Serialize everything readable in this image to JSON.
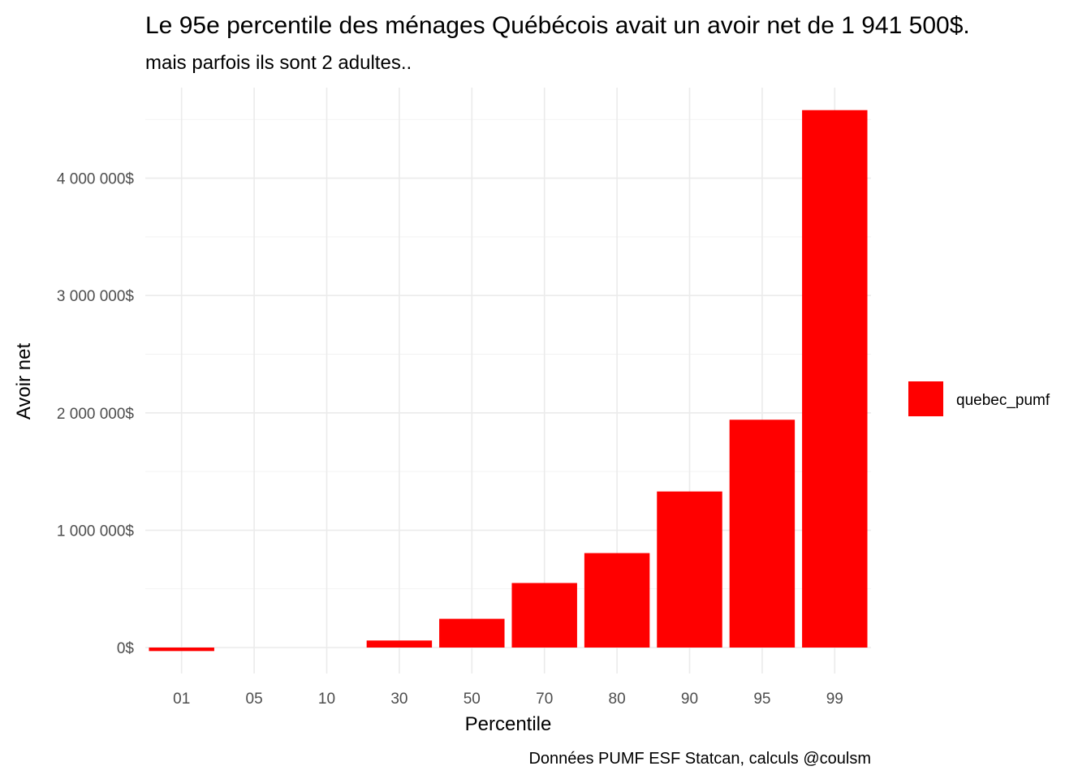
{
  "chart_data": {
    "type": "bar",
    "title": "Le 95e percentile des ménages Québécois avait un avoir net de 1 941 500$.",
    "subtitle": "mais parfois ils sont 2 adultes..",
    "xlabel": "Percentile",
    "ylabel": "Avoir net",
    "caption": "Données PUMF ESF Statcan, calculs @coulsm",
    "categories": [
      "01",
      "05",
      "10",
      "30",
      "50",
      "70",
      "80",
      "90",
      "95",
      "99"
    ],
    "series": [
      {
        "name": "quebec_pumf",
        "color": "#ff0000",
        "values": [
          -30000,
          0,
          0,
          60000,
          245000,
          550000,
          805000,
          1330000,
          1941500,
          4580000
        ]
      }
    ],
    "ylim": [
      -150000,
      4650000
    ],
    "yticks": [
      0,
      1000000,
      2000000,
      3000000,
      4000000
    ],
    "ytick_labels": [
      "0$",
      "1 000 000$",
      "2 000 000$",
      "3 000 000$",
      "4 000 000$"
    ],
    "grid": true,
    "legend_position": "right"
  }
}
